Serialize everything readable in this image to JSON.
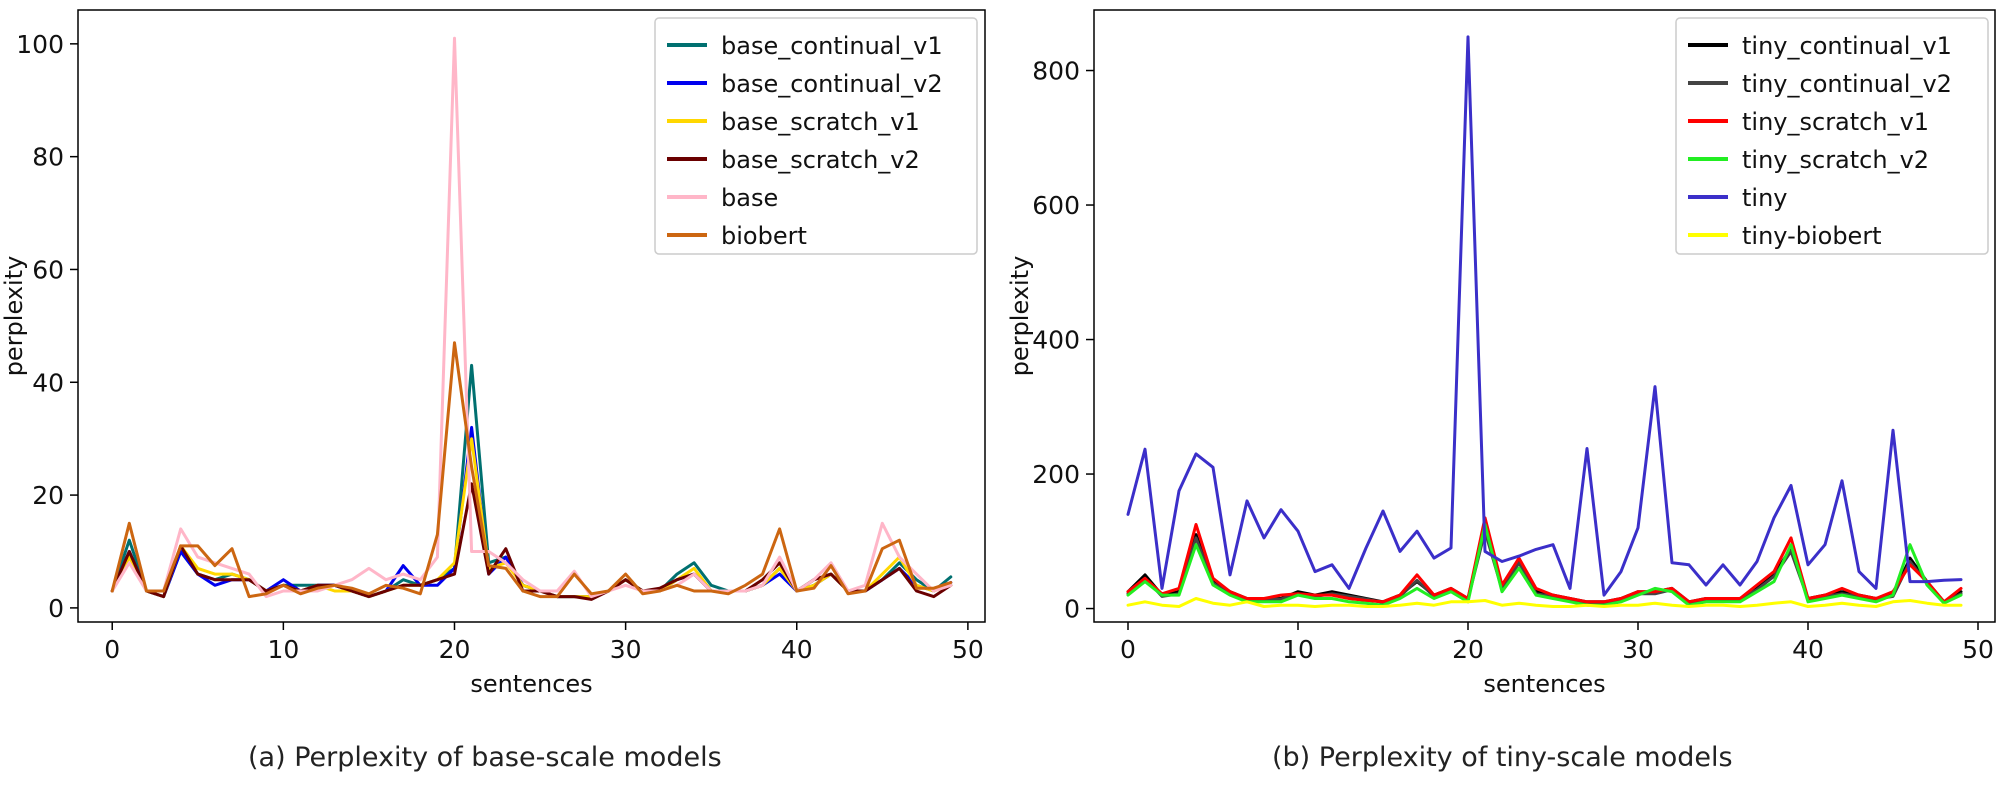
{
  "chart_data": [
    {
      "type": "line",
      "caption": "(a) Perplexity of base-scale models",
      "xlabel": "sentences",
      "ylabel": "perplexity",
      "xlim": [
        -2,
        51
      ],
      "ylim": [
        -2.5,
        106
      ],
      "xticks": [
        0,
        10,
        20,
        30,
        40,
        50
      ],
      "yticks": [
        0,
        20,
        40,
        60,
        80,
        100
      ],
      "legend_position": "top-right",
      "x": [
        0,
        1,
        2,
        3,
        4,
        5,
        6,
        7,
        8,
        9,
        10,
        11,
        12,
        13,
        14,
        15,
        16,
        17,
        18,
        19,
        20,
        21,
        22,
        23,
        24,
        25,
        26,
        27,
        28,
        29,
        30,
        31,
        32,
        33,
        34,
        35,
        36,
        37,
        38,
        39,
        40,
        41,
        42,
        43,
        44,
        45,
        46,
        47,
        48,
        49
      ],
      "series": [
        {
          "name": "base_continual_v1",
          "color": "#007070",
          "values": [
            3,
            12,
            3,
            2,
            10,
            6,
            5,
            6,
            5,
            3,
            4,
            4,
            4,
            4,
            3,
            2,
            3,
            5,
            4,
            5,
            7,
            43,
            8,
            9,
            4,
            3,
            2,
            2,
            2,
            3,
            5,
            3,
            3,
            6,
            8,
            4,
            3,
            3,
            4,
            7,
            3,
            5,
            6,
            3,
            3,
            5,
            8,
            5,
            3,
            5.5
          ]
        },
        {
          "name": "base_continual_v2",
          "color": "#0000ee",
          "values": [
            3,
            10,
            3,
            2,
            10,
            6,
            4,
            5,
            5,
            3,
            5,
            3,
            4,
            4,
            3,
            2,
            3,
            7.5,
            4,
            4,
            7,
            32,
            6,
            9,
            4,
            3,
            2,
            2,
            2,
            3,
            5,
            3,
            3,
            5,
            6,
            3,
            3,
            3,
            4,
            6,
            3,
            4,
            6,
            3,
            3,
            5,
            7,
            4,
            3,
            4.5
          ]
        },
        {
          "name": "base_scratch_v1",
          "color": "#ffd700",
          "values": [
            3,
            9,
            3,
            2,
            11,
            7,
            6,
            6,
            5,
            3,
            4,
            3,
            4,
            3,
            3,
            2,
            3,
            4,
            4,
            5,
            8,
            30,
            7,
            8,
            4,
            3,
            2,
            2,
            2,
            3,
            5,
            3,
            3,
            5,
            7,
            3,
            3,
            3,
            4,
            7,
            3,
            4,
            6,
            3,
            3,
            6,
            9,
            4,
            3,
            4
          ]
        },
        {
          "name": "base_scratch_v2",
          "color": "#6a0000",
          "values": [
            3,
            10,
            3,
            2,
            11,
            6,
            5,
            5,
            5,
            3,
            4,
            3,
            4,
            4,
            3,
            2,
            3,
            4,
            4,
            5,
            6,
            22,
            6,
            10.5,
            3,
            3,
            2,
            2,
            1.5,
            3,
            5,
            3,
            3.5,
            5,
            6,
            3,
            3,
            3,
            5,
            8,
            3,
            5,
            6,
            3,
            3,
            5,
            7,
            3,
            2,
            4
          ]
        },
        {
          "name": "base",
          "color": "#ffb6c8",
          "values": [
            3,
            8,
            3,
            3,
            14,
            9,
            8,
            7,
            6,
            2,
            3,
            3,
            3,
            4,
            5,
            7,
            5,
            6,
            5,
            9,
            101,
            10,
            10,
            8,
            5,
            3,
            3,
            6.5,
            2,
            3,
            4,
            3,
            3,
            4,
            6,
            3,
            3,
            3,
            4,
            9,
            3,
            5,
            8,
            3,
            4,
            15,
            9,
            6,
            3,
            4
          ]
        },
        {
          "name": "biobert",
          "color": "#cc6611",
          "values": [
            3,
            15,
            3,
            3,
            11,
            11,
            7.5,
            10.5,
            2,
            2.5,
            4,
            2.5,
            3.5,
            4,
            3.5,
            2.5,
            4,
            3.5,
            2.5,
            13,
            47,
            25,
            7.5,
            7,
            3,
            2,
            2,
            6,
            2.5,
            3,
            6,
            2.5,
            3,
            4,
            3,
            3,
            2.5,
            4,
            6,
            14,
            3,
            3.5,
            7.5,
            2.5,
            3,
            10.5,
            12,
            3.5,
            3.5,
            4.5
          ]
        }
      ]
    },
    {
      "type": "line",
      "caption": "(b) Perplexity of tiny-scale models",
      "xlabel": "sentences",
      "ylabel": "perplexity",
      "xlim": [
        -2,
        51
      ],
      "ylim": [
        -20,
        890
      ],
      "xticks": [
        0,
        10,
        20,
        30,
        40,
        50
      ],
      "yticks": [
        0,
        200,
        400,
        600,
        800
      ],
      "legend_position": "top-right",
      "x": [
        0,
        1,
        2,
        3,
        4,
        5,
        6,
        7,
        8,
        9,
        10,
        11,
        12,
        13,
        14,
        15,
        16,
        17,
        18,
        19,
        20,
        21,
        22,
        23,
        24,
        25,
        26,
        27,
        28,
        29,
        30,
        31,
        32,
        33,
        34,
        35,
        36,
        37,
        38,
        39,
        40,
        41,
        42,
        43,
        44,
        45,
        46,
        47,
        48,
        49
      ],
      "series": [
        {
          "name": "tiny_continual_v1",
          "color": "#000000",
          "values": [
            25,
            50,
            20,
            25,
            110,
            40,
            25,
            15,
            15,
            15,
            25,
            20,
            25,
            20,
            15,
            10,
            20,
            40,
            20,
            30,
            15,
            120,
            30,
            70,
            25,
            20,
            15,
            10,
            10,
            15,
            25,
            25,
            30,
            10,
            15,
            15,
            15,
            30,
            50,
            90,
            15,
            20,
            25,
            20,
            15,
            20,
            75,
            40,
            10,
            25
          ]
        },
        {
          "name": "tiny_continual_v2",
          "color": "#444444",
          "values": [
            22,
            45,
            18,
            22,
            105,
            38,
            22,
            14,
            14,
            14,
            22,
            18,
            22,
            18,
            14,
            9,
            18,
            42,
            18,
            28,
            14,
            115,
            28,
            68,
            22,
            18,
            14,
            9,
            9,
            14,
            22,
            22,
            28,
            9,
            14,
            14,
            14,
            28,
            48,
            85,
            14,
            18,
            22,
            18,
            14,
            18,
            70,
            38,
            9,
            22
          ]
        },
        {
          "name": "tiny_scratch_v1",
          "color": "#ff0000",
          "values": [
            25,
            45,
            22,
            30,
            125,
            45,
            25,
            15,
            15,
            20,
            22,
            20,
            20,
            15,
            12,
            10,
            20,
            50,
            20,
            30,
            15,
            135,
            35,
            75,
            30,
            20,
            15,
            10,
            10,
            15,
            25,
            25,
            30,
            10,
            15,
            15,
            15,
            35,
            55,
            105,
            15,
            20,
            30,
            20,
            15,
            25,
            65,
            40,
            10,
            30
          ]
        },
        {
          "name": "tiny_scratch_v2",
          "color": "#22ee22",
          "values": [
            20,
            40,
            20,
            20,
            95,
            35,
            20,
            10,
            10,
            10,
            20,
            15,
            15,
            10,
            8,
            5,
            15,
            30,
            15,
            25,
            10,
            125,
            25,
            60,
            20,
            15,
            10,
            5,
            5,
            10,
            20,
            30,
            25,
            5,
            10,
            10,
            10,
            25,
            40,
            95,
            10,
            15,
            20,
            15,
            10,
            20,
            95,
            35,
            8,
            20
          ]
        },
        {
          "name": "tiny",
          "color": "#3b2fc9",
          "values": [
            140,
            237,
            30,
            175,
            230,
            210,
            50,
            160,
            105,
            147,
            115,
            55,
            65,
            30,
            90,
            145,
            85,
            115,
            75,
            90,
            850,
            85,
            70,
            78,
            88,
            95,
            30,
            238,
            20,
            55,
            120,
            330,
            68,
            65,
            35,
            65,
            35,
            70,
            135,
            183,
            65,
            95,
            190,
            55,
            30,
            265,
            40,
            40,
            42,
            43
          ]
        },
        {
          "name": "tiny-biobert",
          "color": "#ffff00",
          "values": [
            5,
            10,
            5,
            3,
            15,
            8,
            5,
            10,
            3,
            5,
            5,
            3,
            5,
            5,
            3,
            3,
            5,
            8,
            5,
            10,
            10,
            12,
            5,
            8,
            5,
            3,
            3,
            5,
            3,
            5,
            5,
            8,
            5,
            3,
            5,
            5,
            3,
            5,
            8,
            10,
            3,
            5,
            8,
            5,
            3,
            10,
            12,
            8,
            5,
            5
          ]
        }
      ]
    }
  ]
}
